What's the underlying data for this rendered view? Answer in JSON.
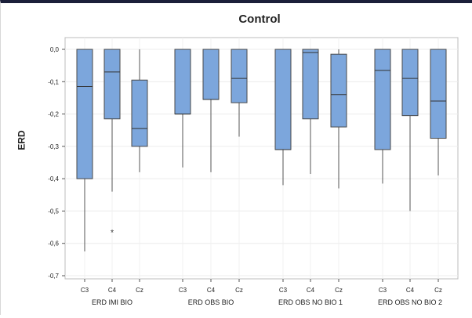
{
  "chart_data": {
    "type": "boxplot",
    "title": "Control",
    "ylabel": "ERD",
    "ylim": [
      -0.7,
      0.0
    ],
    "yticks": [
      "0,0",
      "-0,1",
      "-0,2",
      "-0,3",
      "-0,4",
      "-0,5",
      "-0,6",
      "-0,7"
    ],
    "grid": true,
    "box_color": "#7ca6dc",
    "groups": [
      {
        "name": "ERD IMI BIO",
        "boxes": [
          {
            "label": "C3",
            "q1": -0.4,
            "median": -0.115,
            "q3": 0.0,
            "whisker_low": -0.625,
            "whisker_high": 0.0,
            "outliers": []
          },
          {
            "label": "C4",
            "q1": -0.215,
            "median": -0.07,
            "q3": 0.0,
            "whisker_low": -0.44,
            "whisker_high": 0.0,
            "outliers": [
              -0.565
            ]
          },
          {
            "label": "Cz",
            "q1": -0.3,
            "median": -0.245,
            "q3": -0.095,
            "whisker_low": -0.38,
            "whisker_high": 0.0,
            "outliers": []
          }
        ]
      },
      {
        "name": "ERD OBS BIO",
        "boxes": [
          {
            "label": "C3",
            "q1": -0.2,
            "median": -0.2,
            "q3": 0.0,
            "whisker_low": -0.365,
            "whisker_high": 0.0,
            "outliers": []
          },
          {
            "label": "C4",
            "q1": -0.155,
            "median": -0.155,
            "q3": 0.0,
            "whisker_low": -0.38,
            "whisker_high": 0.0,
            "outliers": []
          },
          {
            "label": "Cz",
            "q1": -0.165,
            "median": -0.09,
            "q3": 0.0,
            "whisker_low": -0.27,
            "whisker_high": 0.0,
            "outliers": []
          }
        ]
      },
      {
        "name": "ERD OBS NO BIO 1",
        "boxes": [
          {
            "label": "C3",
            "q1": -0.31,
            "median": -0.31,
            "q3": 0.0,
            "whisker_low": -0.42,
            "whisker_high": 0.0,
            "outliers": []
          },
          {
            "label": "C4",
            "q1": -0.215,
            "median": -0.01,
            "q3": 0.0,
            "whisker_low": -0.385,
            "whisker_high": 0.0,
            "outliers": []
          },
          {
            "label": "Cz",
            "q1": -0.24,
            "median": -0.14,
            "q3": -0.015,
            "whisker_low": -0.43,
            "whisker_high": 0.0,
            "outliers": []
          }
        ]
      },
      {
        "name": "ERD OBS NO BIO 2",
        "boxes": [
          {
            "label": "C3",
            "q1": -0.31,
            "median": -0.065,
            "q3": 0.0,
            "whisker_low": -0.415,
            "whisker_high": 0.0,
            "outliers": []
          },
          {
            "label": "C4",
            "q1": -0.205,
            "median": -0.09,
            "q3": 0.0,
            "whisker_low": -0.5,
            "whisker_high": 0.0,
            "outliers": []
          },
          {
            "label": "Cz",
            "q1": -0.275,
            "median": -0.16,
            "q3": 0.0,
            "whisker_low": -0.39,
            "whisker_high": 0.0,
            "outliers": []
          }
        ]
      }
    ]
  }
}
